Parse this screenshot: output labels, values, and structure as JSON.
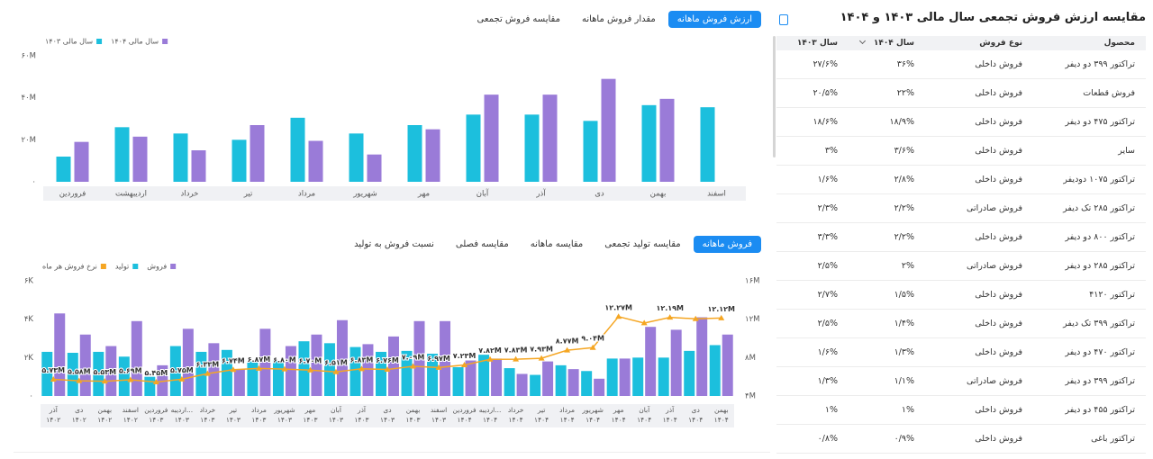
{
  "top_tabs": {
    "items": [
      "ارزش فروش ماهانه",
      "مقدار فروش ماهانه",
      "مقایسه فروش تجمعی"
    ],
    "active": 0
  },
  "bottom_tabs": {
    "items": [
      "فروش ماهانه",
      "مقایسه تولید تجمعی",
      "مقایسه ماهانه",
      "مقایسه فصلی",
      "نسبت فروش به تولید"
    ],
    "active": 0
  },
  "chart_data": [
    {
      "type": "bar",
      "legend": "top-left",
      "grid": false,
      "ylim": [
        0,
        60000000
      ],
      "yticks": [
        {
          "value": 0,
          "label": "۰"
        },
        {
          "value": 20000000,
          "label": "۲۰M"
        },
        {
          "value": 40000000,
          "label": "۴۰M"
        },
        {
          "value": 60000000,
          "label": "۶۰M"
        }
      ],
      "categories": [
        "فروردین",
        "اردیبهشت",
        "خرداد",
        "تیر",
        "مرداد",
        "شهریور",
        "مهر",
        "آبان",
        "آذر",
        "دی",
        "بهمن",
        "اسفند"
      ],
      "series": [
        {
          "name": "سال مالی ۱۴۰۳",
          "type": "bar",
          "color": "#1cbfdd",
          "values": [
            12000000,
            26000000,
            23000000,
            20000000,
            30500000,
            23000000,
            27000000,
            32000000,
            32000000,
            29000000,
            36500000,
            35500000
          ]
        },
        {
          "name": "سال مالی ۱۴۰۴",
          "type": "bar",
          "color": "#9a7bd8",
          "values": [
            19000000,
            21500000,
            15000000,
            27000000,
            19500000,
            13000000,
            25000000,
            41500000,
            41500000,
            49000000,
            39500000,
            null
          ]
        }
      ]
    },
    {
      "type": "combo",
      "legend": "top-left",
      "grid": false,
      "ylim": [
        0,
        6000
      ],
      "yticks": [
        {
          "value": 0,
          "label": "۰"
        },
        {
          "value": 2000,
          "label": "۲K"
        },
        {
          "value": 4000,
          "label": "۴K"
        },
        {
          "value": 6000,
          "label": "۶K"
        }
      ],
      "y2lim": [
        4000000,
        16000000
      ],
      "y2ticks": [
        {
          "value": 4000000,
          "label": "۴M"
        },
        {
          "value": 8000000,
          "label": "۸M"
        },
        {
          "value": 12000000,
          "label": "۱۲M"
        },
        {
          "value": 16000000,
          "label": "۱۶M"
        }
      ],
      "categories": [
        [
          "آذر",
          "۱۴۰۲"
        ],
        [
          "دی",
          "۱۴۰۲"
        ],
        [
          "بهمن",
          "۱۴۰۲"
        ],
        [
          "اسفند",
          "۱۴۰۲"
        ],
        [
          "فروردین",
          "۱۴۰۳"
        ],
        [
          "اردیبه...",
          "۱۴۰۳"
        ],
        [
          "خرداد",
          "۱۴۰۳"
        ],
        [
          "تیر",
          "۱۴۰۳"
        ],
        [
          "مرداد",
          "۱۴۰۳"
        ],
        [
          "شهریور",
          "۱۴۰۳"
        ],
        [
          "مهر",
          "۱۴۰۳"
        ],
        [
          "آبان",
          "۱۴۰۳"
        ],
        [
          "آذر",
          "۱۴۰۳"
        ],
        [
          "دی",
          "۱۴۰۳"
        ],
        [
          "بهمن",
          "۱۴۰۳"
        ],
        [
          "اسفند",
          "۱۴۰۳"
        ],
        [
          "فروردین",
          "۱۴۰۴"
        ],
        [
          "اردیبه...",
          "۱۴۰۴"
        ],
        [
          "خرداد",
          "۱۴۰۴"
        ],
        [
          "تیر",
          "۱۴۰۴"
        ],
        [
          "مرداد",
          "۱۴۰۴"
        ],
        [
          "شهریور",
          "۱۴۰۴"
        ],
        [
          "مهر",
          "۱۴۰۴"
        ],
        [
          "آبان",
          "۱۴۰۴"
        ],
        [
          "آذر",
          "۱۴۰۴"
        ],
        [
          "دی",
          "۱۴۰۴"
        ],
        [
          "بهمن",
          "۱۴۰۴"
        ]
      ],
      "series": [
        {
          "name": "نرخ فروش هر ماه",
          "type": "line",
          "axis": "y2",
          "color": "#f5a623",
          "values": [
            5730000,
            5580000,
            5530000,
            5690000,
            5450000,
            5750000,
            6330000,
            6740000,
            6870000,
            6800000,
            6700000,
            6510000,
            6830000,
            6760000,
            7090000,
            6970000,
            7230000,
            7820000,
            7830000,
            7930000,
            8770000,
            9040000,
            12270000,
            11600000,
            12190000,
            12040000,
            12120000
          ],
          "value_labels": [
            "۵.۷۳M",
            "۵.۵۸M",
            "۵.۵۳M",
            "۵.۶۹M",
            "۵.۴۵M",
            "۵.۷۵M",
            "۶.۳۳M",
            "۶.۷۴M",
            "۶.۸۷M",
            "۶.۸۰M",
            "۶.۷۰M",
            "۶.۵۱M",
            "۶.۸۳M",
            "۶.۷۶M",
            "۷.۰۹M",
            "۶.۹۷M",
            "۷.۲۳M",
            "۷.۸۲M",
            "۷.۸۳M",
            "۷.۹۳M",
            "۸.۷۷M",
            "۹.۰۴M",
            "۱۲.۲۷M",
            null,
            "۱۲.۱۹M",
            null,
            "۱۲.۱۲M"
          ]
        },
        {
          "name": "تولید",
          "type": "bar",
          "color": "#1cbfdd",
          "values": [
            2300,
            2250,
            2300,
            2050,
            1000,
            2600,
            2300,
            2400,
            1800,
            1850,
            2850,
            2750,
            2550,
            2300,
            2350,
            2200,
            1500,
            2150,
            1450,
            1100,
            1600,
            1300,
            1950,
            2000,
            2000,
            2350,
            2650
          ]
        },
        {
          "name": "فروش",
          "type": "bar",
          "color": "#9a7bd8",
          "values": [
            4300,
            3200,
            2600,
            3900,
            1600,
            3500,
            2750,
            1400,
            3500,
            2600,
            3200,
            3950,
            2700,
            3100,
            3900,
            3900,
            1850,
            1950,
            1150,
            1800,
            1400,
            900,
            1950,
            3600,
            3450,
            4100,
            3200
          ]
        }
      ]
    }
  ],
  "table": {
    "title": "مقایسه ارزش فروش تجمعی سال مالی ۱۴۰۳ و ۱۴۰۴",
    "columns": [
      "محصول",
      "نوع فروش",
      "سال ۱۴۰۴",
      "سال ۱۴۰۳"
    ],
    "rows": [
      [
        "تراکتور ۳۹۹ دو دیفر",
        "فروش داخلی",
        "۳۶%",
        "۲۷/۶%"
      ],
      [
        "فروش قطعات",
        "فروش داخلی",
        "۲۲%",
        "۲۰/۵%"
      ],
      [
        "تراکتور ۴۷۵ دو دیفر",
        "فروش داخلی",
        "۱۸/۹%",
        "۱۸/۶%"
      ],
      [
        "سایر",
        "فروش داخلی",
        "۳/۶%",
        "۳%"
      ],
      [
        "تراکتور ۱۰۷۵ دودیفر",
        "فروش داخلی",
        "۲/۸%",
        "۱/۶%"
      ],
      [
        "تراکتور ۲۸۵ تک دیفر",
        "فروش صادراتی",
        "۲/۲%",
        "۲/۳%"
      ],
      [
        "تراکتور ۸۰۰ دو دیفر",
        "فروش داخلی",
        "۲/۲%",
        "۳/۳%"
      ],
      [
        "تراکتور ۲۸۵ دو دیفر",
        "فروش صادراتی",
        "۲%",
        "۲/۵%"
      ],
      [
        "تراکتور ۴۱۲۰",
        "فروش داخلی",
        "۱/۵%",
        "۲/۷%"
      ],
      [
        "تراکتور ۳۹۹ تک دیفر",
        "فروش داخلی",
        "۱/۴%",
        "۲/۵%"
      ],
      [
        "تراکتور ۴۷۰ دو دیفر",
        "فروش داخلی",
        "۱/۳%",
        "۱/۶%"
      ],
      [
        "تراکتور ۳۹۹ دو دیفر",
        "فروش صادراتی",
        "۱/۱%",
        "۱/۳%"
      ],
      [
        "تراکتور ۴۵۵ دو دیفر",
        "فروش داخلی",
        "۱%",
        "۱%"
      ],
      [
        "تراکتور باغی",
        "فروش داخلی",
        "۰/۹%",
        "۰/۸%"
      ]
    ]
  }
}
